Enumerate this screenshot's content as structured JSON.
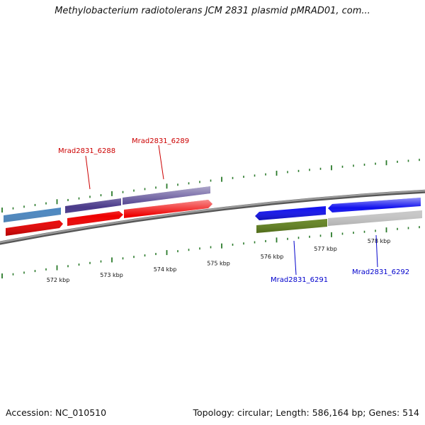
{
  "header": {
    "title": "Methylobacterium radiotolerans JCM 2831 plasmid pMRAD01, com..."
  },
  "scale": {
    "ticks": [
      {
        "kbp": 572,
        "label": "572 kbp"
      },
      {
        "kbp": 573,
        "label": "573 kbp"
      },
      {
        "kbp": 574,
        "label": "574 kbp"
      },
      {
        "kbp": 575,
        "label": "575 kbp"
      },
      {
        "kbp": 576,
        "label": "576 kbp"
      },
      {
        "kbp": 577,
        "label": "577 kbp"
      },
      {
        "kbp": 578,
        "label": "578 kbp"
      }
    ]
  },
  "gene_labels": [
    {
      "text": "Mrad2831_6288",
      "color": "#cc0000"
    },
    {
      "text": "Mrad2831_6289",
      "color": "#cc0000"
    },
    {
      "text": "Mrad2831_6291",
      "color": "#0000cc"
    },
    {
      "text": "Mrad2831_6292",
      "color": "#0000cc"
    }
  ],
  "colors": {
    "forward_cds": "#ee0000",
    "reverse_cds": "#1111ee",
    "cog_purple": "#4a3a8a",
    "cog_steelblue": "#4a86c0",
    "cog_olive": "#6b8e23",
    "cog_none": "#c8c8c8",
    "backbone": "#777777",
    "tick_green": "#2a7a2a"
  },
  "footer": {
    "accession": "Accession: NC_010510",
    "stats": "Topology: circular; Length: 586,164 bp; Genes: 514"
  }
}
